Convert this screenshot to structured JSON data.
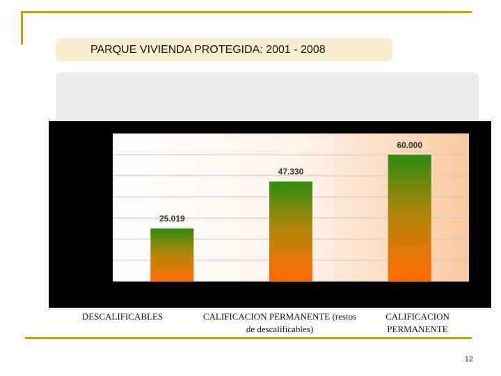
{
  "slide": {
    "title": "PARQUE VIVIENDA PROTEGIDA: 2001 - 2008",
    "page_number": "12"
  },
  "colors": {
    "accent_line": "#c8a200",
    "title_box": "#f9edd2",
    "bar_top": "#2e8b10",
    "bar_bottom": "#ff6a00",
    "plot_background_right": "#f9c9a0"
  },
  "chart_data": {
    "type": "bar",
    "categories": [
      "DESCALIFICABLES",
      "CALIFICACION PERMANENTE (restos de descalificables)",
      "CALIFICACION PERMANENTE"
    ],
    "category_lines": [
      [
        "DESCALIFICABLES"
      ],
      [
        "CALIFICACION PERMANENTE (restos",
        "de descalificables)"
      ],
      [
        "CALIFICACION",
        "PERMANENTE"
      ]
    ],
    "values": [
      25019,
      47330,
      60000
    ],
    "data_labels": [
      "25.019",
      "47.330",
      "60.000"
    ],
    "ylim": [
      0,
      70000
    ],
    "grid": true,
    "legend": "none",
    "title": "",
    "xlabel": "",
    "ylabel": ""
  }
}
